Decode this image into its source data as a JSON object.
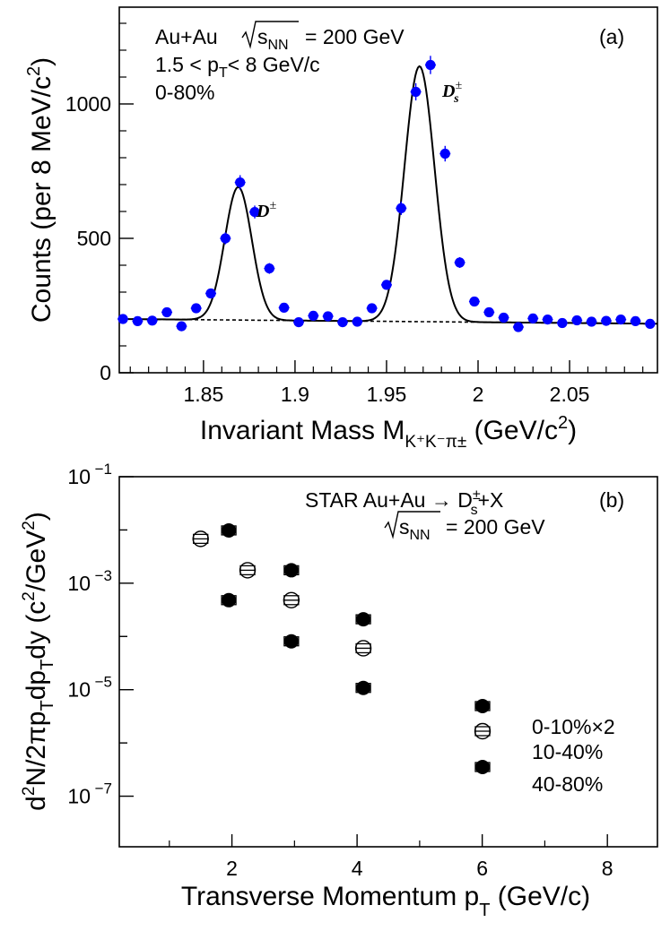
{
  "chart_data": [
    {
      "panel": "(a)",
      "type": "scatter",
      "title_lines": [
        "Au+Au",
        "= 200 GeV",
        "1.5 < p",
        "< 8 GeV/c",
        "0-80%"
      ],
      "sqrt_s": "s",
      "sqrt_s_sub": "NN",
      "pt_sub": "T",
      "ylabel": "Counts (per 8 MeV/c",
      "ylabel_sup": "2",
      "ylabel_close": ")",
      "xlabel_main": "Invariant Mass M",
      "xlabel_sub": "K⁺K⁻π±",
      "xlabel_tail": " (GeV/c",
      "xlabel_sup": "2",
      "xlabel_close": ")",
      "xlim": [
        1.804,
        2.098
      ],
      "ylim": [
        0,
        1360
      ],
      "xticks": [
        1.85,
        1.9,
        1.95,
        2,
        2.05
      ],
      "xtick_labels": [
        "1.85",
        "1.9",
        "1.95",
        "2",
        "2.05"
      ],
      "yticks": [
        0,
        500,
        1000
      ],
      "ytick_labels": [
        "0",
        "500",
        "1000"
      ],
      "peak_labels": [
        {
          "text": "D",
          "sup": "±",
          "x": 1.876,
          "y": 640
        },
        {
          "text": "D",
          "sup": "±",
          "sub": "s",
          "x": 1.976,
          "y": 1070
        }
      ],
      "points": {
        "x": [
          1.806,
          1.814,
          1.822,
          1.83,
          1.838,
          1.846,
          1.854,
          1.862,
          1.87,
          1.878,
          1.886,
          1.894,
          1.902,
          1.91,
          1.918,
          1.926,
          1.934,
          1.942,
          1.95,
          1.958,
          1.966,
          1.974,
          1.982,
          1.99,
          1.998,
          2.006,
          2.014,
          2.022,
          2.03,
          2.038,
          2.046,
          2.054,
          2.062,
          2.07,
          2.078,
          2.086,
          2.094
        ],
        "y": [
          200,
          192,
          194,
          225,
          173,
          240,
          295,
          500,
          708,
          598,
          388,
          242,
          188,
          212,
          210,
          188,
          190,
          240,
          327,
          612,
          1045,
          1145,
          815,
          410,
          265,
          225,
          205,
          170,
          202,
          198,
          185,
          195,
          190,
          193,
          198,
          192,
          182
        ],
        "yerr": [
          14,
          14,
          14,
          15,
          13,
          15,
          17,
          22,
          27,
          24,
          20,
          16,
          14,
          15,
          15,
          14,
          14,
          15,
          18,
          25,
          32,
          34,
          29,
          20,
          16,
          15,
          14,
          13,
          14,
          14,
          14,
          14,
          14,
          14,
          14,
          14,
          14
        ]
      },
      "fit": {
        "background": {
          "a": 200,
          "slope": -60
        },
        "peaks": [
          {
            "mean": 1.869,
            "sigma": 0.0074,
            "amp": 495
          },
          {
            "mean": 1.968,
            "sigma": 0.0082,
            "amp": 950
          }
        ]
      }
    },
    {
      "panel": "(b)",
      "type": "scatter",
      "yscale": "log",
      "annotation_line1": "STAR Au+Au → D",
      "annotation_line1_sup": "±",
      "annotation_line1_sub": "s",
      "annotation_line1_tail": "+X",
      "annotation_line2": "= 200 GeV",
      "sqrt_s": "s",
      "sqrt_s_sub": "NN",
      "ylabel_parts": [
        "d",
        "2",
        "N/2πp",
        "T",
        "dp",
        "T",
        "dy (c",
        "2",
        "/GeV",
        "2",
        ")"
      ],
      "xlabel_main": "Transverse Momentum p",
      "xlabel_sub": "T",
      "xlabel_tail": " (GeV/c)",
      "xlim": [
        0.2,
        8.8
      ],
      "ylim_log10": [
        -7.95,
        -1
      ],
      "xticks": [
        2,
        4,
        6,
        8
      ],
      "xtick_labels": [
        "2",
        "4",
        "6",
        "8"
      ],
      "yticks_log10": [
        -1,
        -3,
        -5,
        -7
      ],
      "ytick_base": "10",
      "ytick_exps": [
        "−1",
        "−3",
        "−5",
        "−7"
      ],
      "series": [
        {
          "name": "0-10%×2",
          "marker": "filled",
          "x": [
            1.95,
            2.95,
            4.1
          ],
          "y": [
            0.0098,
            0.00175,
            0.00021
          ]
        },
        {
          "name": "10-40%",
          "marker": "open",
          "x": [
            1.5,
            2.25,
            2.95,
            4.1
          ],
          "y": [
            0.0068,
            0.00175,
            0.00048,
            6e-05
          ]
        },
        {
          "name": "40-80%",
          "marker": "filled",
          "x": [
            1.95,
            2.95,
            4.1
          ],
          "y": [
            0.00048,
            8.1e-05,
            1.08e-05
          ]
        }
      ],
      "legend": [
        {
          "label": "0-10%×2",
          "marker": "filled"
        },
        {
          "label": "10-40%",
          "marker": "open"
        },
        {
          "label": "40-80%",
          "marker": "filled"
        }
      ]
    }
  ]
}
